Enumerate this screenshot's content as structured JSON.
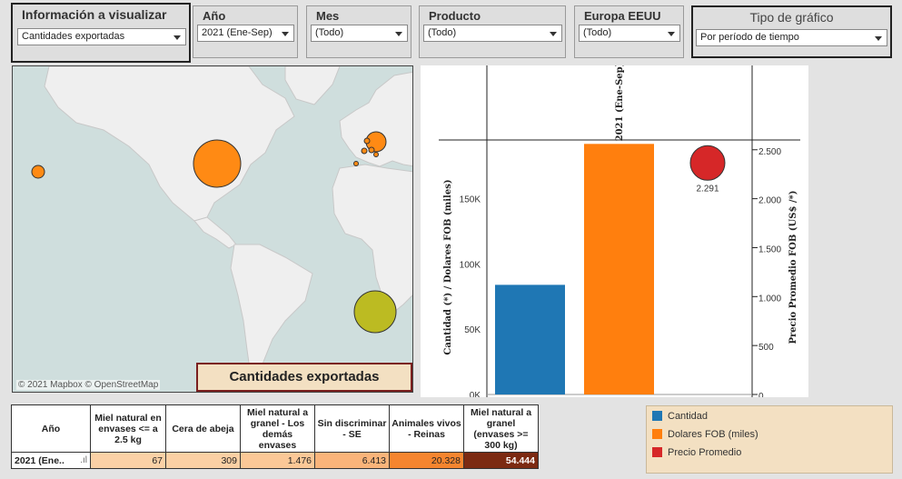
{
  "filters": {
    "info": {
      "title": "Información a visualizar",
      "value": "Cantidades exportadas"
    },
    "year": {
      "title": "Año",
      "value": "2021 (Ene-Sep)"
    },
    "month": {
      "title": "Mes",
      "value": "(Todo)"
    },
    "product": {
      "title": "Producto",
      "value": "(Todo)"
    },
    "region": {
      "title": "Europa EEUU",
      "value": "(Todo)"
    },
    "chart_type": {
      "title": "Tipo de gráfico",
      "value": "Por período de tiempo"
    }
  },
  "map": {
    "attribution": "© 2021 Mapbox  © OpenStreetMap",
    "banner": "Cantidades exportadas",
    "colors": {
      "land": "#efefef",
      "water": "#cfdedd",
      "bubble_orange": "#ff8a14",
      "bubble_olive": "#bcbb22"
    }
  },
  "chart_data": {
    "type": "bar",
    "column_header": "2021 (Ene-Sep)",
    "categories": [
      "2021 (Ene-Sep)"
    ],
    "series": [
      {
        "name": "Cantidad",
        "values": [
          84000
        ],
        "color": "#1f77b4",
        "axis": "left"
      },
      {
        "name": "Dolares FOB (miles)",
        "values": [
          192000
        ],
        "color": "#ff7f0e",
        "axis": "left"
      },
      {
        "name": "Precio Promedio",
        "values": [
          2291
        ],
        "color": "#d62728",
        "axis": "right",
        "label": "2.291"
      }
    ],
    "ylabel_left": "Cantidad (*) / Dolares FOB (miles)",
    "ylabel_right": "Precio Promedio FOB (US$ /*)",
    "ylim_left": [
      0,
      195000
    ],
    "ylim_right": [
      0,
      2600
    ],
    "left_ticks": [
      {
        "v": 0,
        "t": "0K"
      },
      {
        "v": 50000,
        "t": "50K"
      },
      {
        "v": 100000,
        "t": "100K"
      },
      {
        "v": 150000,
        "t": "150K"
      }
    ],
    "right_ticks": [
      {
        "v": 0,
        "t": "0"
      },
      {
        "v": 500,
        "t": "500"
      },
      {
        "v": 1000,
        "t": "1.000"
      },
      {
        "v": 1500,
        "t": "1.500"
      },
      {
        "v": 2000,
        "t": "2.000"
      },
      {
        "v": 2500,
        "t": "2.500"
      }
    ]
  },
  "legend": [
    {
      "label": "Cantidad",
      "color": "#1f77b4"
    },
    {
      "label": "Dolares FOB (miles)",
      "color": "#ff7f0e"
    },
    {
      "label": "Precio Promedio",
      "color": "#d62728"
    }
  ],
  "table": {
    "row_header": "Año",
    "columns": [
      "Miel natural en envases <= a 2.5 kg",
      "Cera de abeja",
      "Miel natural a granel - Los demás envases",
      "Sin discriminar - SE",
      "Animales vivos - Reinas",
      "Miel natural a granel (envases >= 300 kg)"
    ],
    "row_label": "2021 (Ene..",
    "values": [
      "67",
      "309",
      "1.476",
      "6.413",
      "20.328",
      "54.444"
    ],
    "cell_colors": [
      "#fbd1a6",
      "#fbd0a4",
      "#fbc897",
      "#fab47a",
      "#f5852f",
      "#7c2a12"
    ]
  }
}
